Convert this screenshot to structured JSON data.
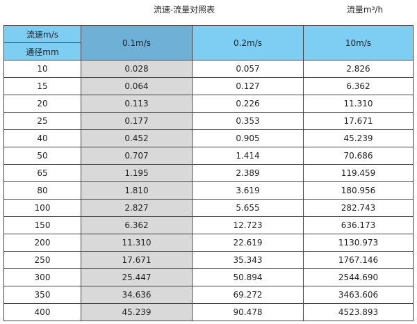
{
  "title": "流速-流量对照表",
  "unit": "流量m³/h",
  "header": {
    "velocity_label": "流速m/s",
    "diameter_label": "通径mm",
    "columns": [
      "0.1m/s",
      "0.2m/s",
      "10m/s"
    ]
  },
  "colors": {
    "header": "#7ecdf3",
    "header_selected": "#6fb1d6",
    "shaded_column": "#d9d9d9"
  },
  "rows": [
    [
      "10",
      "0.028",
      "0.057",
      "2.826"
    ],
    [
      "15",
      "0.064",
      "0.127",
      "6.362"
    ],
    [
      "20",
      "0.113",
      "0.226",
      "11.310"
    ],
    [
      "25",
      "0.177",
      "0.353",
      "17.671"
    ],
    [
      "40",
      "0.452",
      "0.905",
      "45.239"
    ],
    [
      "50",
      "0.707",
      "1.414",
      "70.686"
    ],
    [
      "65",
      "1.195",
      "2.389",
      "119.459"
    ],
    [
      "80",
      "1.810",
      "3.619",
      "180.956"
    ],
    [
      "100",
      "2.827",
      "5.655",
      "282.743"
    ],
    [
      "150",
      "6.362",
      "12.723",
      "636.173"
    ],
    [
      "200",
      "11.310",
      "22.619",
      "1130.973"
    ],
    [
      "250",
      "17.671",
      "35.343",
      "1767.146"
    ],
    [
      "300",
      "25.447",
      "50.894",
      "2544.690"
    ],
    [
      "350",
      "34.636",
      "69.272",
      "3463.606"
    ],
    [
      "400",
      "45.239",
      "90.478",
      "4523.893"
    ]
  ]
}
